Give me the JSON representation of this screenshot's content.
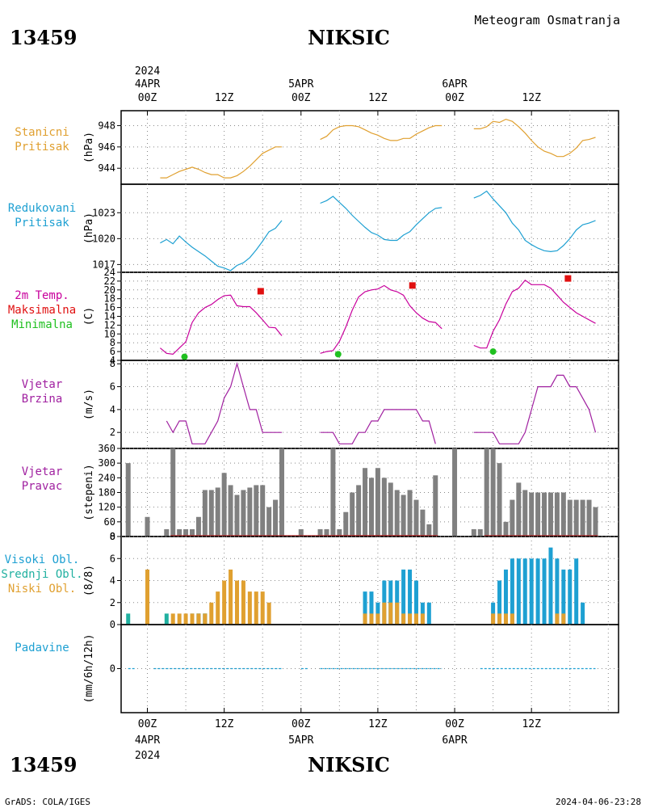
{
  "header": {
    "station_id": "13459",
    "station_name": "NIKSIC",
    "title": "Meteogram Osmatranja"
  },
  "time_axis": {
    "year": "2024",
    "top_ticks": [
      {
        "h": 0,
        "l1": "2024",
        "l2": "4APR",
        "l3": "00Z"
      },
      {
        "h": 12,
        "l3": "12Z"
      },
      {
        "h": 24,
        "l2": "5APR",
        "l3": "00Z"
      },
      {
        "h": 36,
        "l3": "12Z"
      },
      {
        "h": 48,
        "l2": "6APR",
        "l3": "00Z"
      },
      {
        "h": 60,
        "l3": "12Z"
      }
    ],
    "bottom_ticks": [
      {
        "h": 0,
        "l1": "00Z",
        "l2": "4APR",
        "l3": "2024"
      },
      {
        "h": 12,
        "l1": "12Z"
      },
      {
        "h": 24,
        "l1": "00Z",
        "l2": "5APR"
      },
      {
        "h": 36,
        "l1": "12Z"
      },
      {
        "h": 48,
        "l1": "00Z",
        "l2": "6APR"
      },
      {
        "h": 60,
        "l1": "12Z"
      }
    ]
  },
  "panels": {
    "station_pressure": {
      "label": [
        "Stanicni",
        "Pritisak"
      ],
      "unit": "(hPa)",
      "label_color": "#e0a030"
    },
    "reduced_pressure": {
      "label": [
        "Redukovani",
        "Pritisak"
      ],
      "unit": "(hPa)",
      "label_color": "#1ea0d2"
    },
    "temperature": {
      "label": [
        "2m Temp.",
        "Maksimalna",
        "Minimalna"
      ],
      "label_colors": [
        "#c8009c",
        "#e01010",
        "#20c020"
      ],
      "unit": "(C)"
    },
    "wind_speed": {
      "label": [
        "Vjetar",
        "Brzina"
      ],
      "unit": "(m/s)",
      "label_color": "#a020a0"
    },
    "wind_dir": {
      "label": [
        "Vjetar",
        "Pravac"
      ],
      "unit": "(stepeni)",
      "label_color": "#a020a0"
    },
    "clouds": {
      "label": [
        "Visoki Obl.",
        "Srednji Obl.",
        "Niski Obl."
      ],
      "label_colors": [
        "#1ea0d2",
        "#20b0a0",
        "#e0a030"
      ],
      "unit": "(8/8)"
    },
    "precip": {
      "label": [
        "Padavine"
      ],
      "unit": "(mm/6h/12h)",
      "label_color": "#1ea0d2"
    }
  },
  "footer": {
    "left": "GrADS: COLA/IGES",
    "right": "2024-04-06-23:28"
  },
  "chart_data": [
    {
      "type": "line",
      "name": "station_pressure",
      "ylim": [
        942.5,
        949.4
      ],
      "yticks": [
        944,
        946,
        948
      ],
      "color": "#e0a030",
      "segments": [
        {
          "x": [
            2,
            3,
            4,
            5,
            6,
            7,
            8,
            9,
            10,
            11,
            12,
            13,
            14,
            15,
            16,
            17,
            18,
            19,
            20,
            21
          ],
          "y": [
            943.1,
            943.1,
            943.4,
            943.7,
            943.9,
            944.1,
            943.9,
            943.6,
            943.4,
            943.4,
            943.1,
            943.1,
            943.3,
            943.7,
            944.2,
            944.8,
            945.4,
            945.7,
            946.0,
            946.0
          ]
        },
        {
          "x": [
            27,
            28,
            29,
            30,
            31,
            32,
            33,
            34,
            35,
            36,
            37,
            38,
            39,
            40,
            41,
            42,
            43,
            44,
            45,
            46
          ],
          "y": [
            946.7,
            947.0,
            947.6,
            947.9,
            948.0,
            948.0,
            947.9,
            947.6,
            947.3,
            947.1,
            946.8,
            946.6,
            946.6,
            946.8,
            946.8,
            947.2,
            947.5,
            947.8,
            948.0,
            948.0
          ]
        },
        {
          "x": [
            51,
            52,
            53,
            54,
            55,
            56,
            57,
            58,
            59,
            60,
            61,
            62,
            63,
            64,
            65,
            66,
            67,
            68,
            69,
            70
          ],
          "y": [
            947.7,
            947.7,
            947.9,
            948.4,
            948.3,
            948.6,
            948.4,
            947.9,
            947.3,
            946.6,
            946.0,
            945.6,
            945.4,
            945.1,
            945.1,
            945.4,
            945.9,
            946.6,
            946.7,
            946.9
          ]
        }
      ]
    },
    {
      "type": "line",
      "name": "reduced_pressure",
      "ylim": [
        1016.1,
        1026.3
      ],
      "yticks": [
        1017,
        1020,
        1023
      ],
      "color": "#1ea0d2",
      "segments": [
        {
          "x": [
            2,
            3,
            4,
            5,
            6,
            7,
            8,
            9,
            10,
            11,
            12,
            13,
            14,
            15,
            16,
            17,
            18,
            19,
            20,
            21
          ],
          "y": [
            1019.5,
            1019.9,
            1019.4,
            1020.3,
            1019.6,
            1019.0,
            1018.5,
            1018.0,
            1017.4,
            1016.8,
            1016.6,
            1016.3,
            1016.9,
            1017.2,
            1017.8,
            1018.7,
            1019.7,
            1020.8,
            1021.2,
            1022.1
          ]
        },
        {
          "x": [
            27,
            28,
            29,
            30,
            31,
            32,
            33,
            34,
            35,
            36,
            37,
            38,
            39,
            40,
            41,
            42,
            43,
            44,
            45,
            46
          ],
          "y": [
            1024.1,
            1024.4,
            1024.9,
            1024.2,
            1023.5,
            1022.7,
            1022.0,
            1021.3,
            1020.7,
            1020.4,
            1019.9,
            1019.8,
            1019.8,
            1020.4,
            1020.8,
            1021.6,
            1022.3,
            1023.0,
            1023.5,
            1023.6
          ]
        },
        {
          "x": [
            51,
            52,
            53,
            54,
            55,
            56,
            57,
            58,
            59,
            60,
            61,
            62,
            63,
            64,
            65,
            66,
            67,
            68,
            69,
            70
          ],
          "y": [
            1024.7,
            1025.0,
            1025.5,
            1024.6,
            1023.8,
            1023.0,
            1021.8,
            1021.0,
            1019.8,
            1019.3,
            1018.9,
            1018.6,
            1018.5,
            1018.6,
            1019.2,
            1020.0,
            1021.0,
            1021.6,
            1021.8,
            1022.1
          ]
        }
      ],
      "max_points": [],
      "min_points": []
    },
    {
      "type": "line",
      "name": "temperature",
      "ylim": [
        4,
        24
      ],
      "yticks": [
        4,
        6,
        8,
        10,
        12,
        14,
        16,
        18,
        20,
        22,
        24
      ],
      "color": "#c8009c",
      "segments": [
        {
          "x": [
            2,
            3,
            4,
            5,
            6,
            7,
            8,
            9,
            10,
            11,
            12,
            13,
            14,
            15,
            16,
            17,
            18,
            19,
            20,
            21
          ],
          "y": [
            6.8,
            5.6,
            5.4,
            6.8,
            8.2,
            12.6,
            14.8,
            16.0,
            16.7,
            17.8,
            18.7,
            18.8,
            16.4,
            16.2,
            16.2,
            14.8,
            13.2,
            11.5,
            11.4,
            9.6
          ]
        },
        {
          "x": [
            27,
            28,
            29,
            30,
            31,
            32,
            33,
            34,
            35,
            36,
            37,
            38,
            39,
            40,
            41,
            42,
            43,
            44,
            45,
            46
          ],
          "y": [
            5.6,
            6.0,
            6.2,
            8.3,
            11.6,
            15.4,
            18.4,
            19.6,
            20.0,
            20.2,
            21.0,
            20.0,
            19.6,
            18.8,
            16.4,
            14.8,
            13.6,
            12.8,
            12.6,
            11.2
          ]
        },
        {
          "x": [
            51,
            52,
            53,
            54,
            55,
            56,
            57,
            58,
            59,
            60,
            61,
            62,
            63,
            64,
            65,
            66,
            67,
            68,
            69,
            70
          ],
          "y": [
            7.4,
            6.8,
            6.8,
            10.6,
            13.2,
            16.8,
            19.6,
            20.4,
            22.2,
            21.2,
            21.2,
            21.2,
            20.4,
            18.8,
            17.2,
            16.0,
            14.8,
            14.0,
            13.2,
            12.4
          ]
        }
      ],
      "max_points": [
        {
          "x": 17.7,
          "y": 19.7
        },
        {
          "x": 41.4,
          "y": 21.0
        },
        {
          "x": 65.7,
          "y": 22.6
        }
      ],
      "min_points": [
        {
          "x": 5.8,
          "y": 4.8
        },
        {
          "x": 29.8,
          "y": 5.4
        },
        {
          "x": 54.0,
          "y": 6.0
        }
      ]
    },
    {
      "type": "line",
      "name": "wind_speed",
      "ylim": [
        0.6,
        8.3
      ],
      "yticks": [
        2,
        4,
        6,
        8
      ],
      "color": "#a020a0",
      "segments": [
        {
          "x": [
            3,
            4,
            5,
            6,
            7,
            8,
            9,
            10,
            11,
            12,
            13,
            14,
            15,
            16,
            17,
            18,
            19,
            20,
            21
          ],
          "y": [
            3,
            2,
            3,
            3,
            1,
            1,
            1,
            2,
            3,
            5,
            6,
            8,
            6,
            4,
            4,
            2,
            2,
            2,
            2
          ]
        },
        {
          "x": [
            27,
            28,
            29,
            30,
            31,
            32,
            33,
            34,
            35,
            36,
            37,
            38,
            39,
            40,
            41,
            42,
            43,
            44,
            45
          ],
          "y": [
            2,
            2,
            2,
            1,
            1,
            1,
            2,
            2,
            3,
            3,
            4,
            4,
            4,
            4,
            4,
            4,
            3,
            3,
            1
          ]
        },
        {
          "x": [
            51,
            52,
            53,
            54,
            55,
            56,
            57,
            58,
            59,
            60,
            61,
            62,
            63,
            64,
            65,
            66,
            67,
            68,
            69,
            70
          ],
          "y": [
            2,
            2,
            2,
            2,
            1,
            1,
            1,
            1,
            2,
            4,
            6,
            6,
            6,
            7,
            7,
            6,
            6,
            5,
            4,
            2
          ]
        }
      ]
    },
    {
      "type": "bar",
      "name": "wind_dir",
      "ylim": [
        0,
        360
      ],
      "yticks": [
        0,
        60,
        120,
        180,
        240,
        300,
        360
      ],
      "color": "#808080",
      "x": [
        -3,
        0,
        3,
        4,
        5,
        6,
        7,
        8,
        9,
        10,
        11,
        12,
        13,
        14,
        15,
        16,
        17,
        18,
        19,
        20,
        21,
        24,
        27,
        28,
        29,
        30,
        31,
        32,
        33,
        34,
        35,
        36,
        37,
        38,
        39,
        40,
        41,
        42,
        43,
        44,
        45,
        46,
        48,
        51,
        52,
        53,
        54,
        55,
        56,
        57,
        58,
        59,
        60,
        61,
        62,
        63,
        64,
        65,
        66,
        67,
        68,
        69,
        70
      ],
      "values": [
        300,
        80,
        30,
        360,
        30,
        30,
        30,
        80,
        190,
        190,
        200,
        260,
        210,
        170,
        190,
        200,
        210,
        210,
        120,
        150,
        360,
        30,
        30,
        30,
        360,
        30,
        100,
        180,
        210,
        280,
        240,
        280,
        240,
        220,
        190,
        170,
        190,
        150,
        110,
        50,
        250,
        0,
        360,
        30,
        30,
        360,
        360,
        300,
        60,
        150,
        220,
        190,
        180,
        180,
        180,
        180,
        180,
        180,
        150,
        150,
        150,
        150,
        120
      ]
    },
    {
      "type": "bar",
      "name": "clouds",
      "ylim": [
        0,
        8
      ],
      "yticks": [
        0,
        2,
        4,
        6,
        8
      ],
      "series": [
        {
          "name": "Visoki Obl.",
          "color": "#1ea0d2",
          "x": [
            8,
            9,
            34,
            35,
            36,
            37,
            38,
            39,
            40,
            41,
            42,
            43,
            44,
            54,
            55,
            56,
            57,
            58,
            59,
            60,
            61,
            62,
            63,
            64,
            65,
            66,
            67,
            68
          ],
          "values": [
            1,
            1,
            3,
            3,
            2,
            4,
            4,
            4,
            5,
            5,
            4,
            2,
            2,
            2,
            4,
            5,
            6,
            6,
            6,
            6,
            6,
            6,
            7,
            6,
            5,
            5,
            6,
            2
          ]
        },
        {
          "name": "Srednji Obl.",
          "color": "#20b0a0",
          "x": [
            -3,
            3,
            7,
            8,
            9
          ],
          "values": [
            1,
            1,
            1,
            1,
            1
          ]
        },
        {
          "name": "Niski Obl.",
          "color": "#e0a030",
          "x": [
            0,
            4,
            5,
            6,
            7,
            8,
            9,
            10,
            11,
            12,
            13,
            14,
            15,
            16,
            17,
            18,
            19,
            34,
            35,
            36,
            37,
            38,
            39,
            40,
            41,
            42,
            43,
            54,
            55,
            56,
            57,
            64,
            65
          ],
          "values": [
            5,
            1,
            1,
            1,
            1,
            1,
            1,
            2,
            3,
            4,
            5,
            4,
            4,
            3,
            3,
            3,
            2,
            1,
            1,
            1,
            2,
            2,
            2,
            1,
            1,
            1,
            1,
            1,
            1,
            1,
            1,
            1,
            1
          ]
        }
      ]
    },
    {
      "type": "bar",
      "name": "precip",
      "ylim": [
        -1,
        1
      ],
      "yticks": [
        0
      ],
      "color": "#1ea0d2",
      "x": [],
      "values": []
    }
  ]
}
